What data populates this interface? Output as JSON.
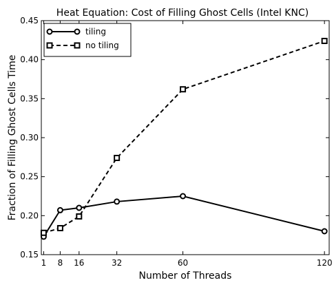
{
  "chart_data": {
    "type": "line",
    "title": "Heat Equation: Cost of Filling Ghost Cells (Intel KNC)",
    "xlabel": "Number of Threads",
    "ylabel": "Fraction of Filling Ghost Cells Time",
    "x": [
      1,
      8,
      16,
      32,
      60,
      120
    ],
    "x_ticks": [
      "1",
      "8",
      "16",
      "32",
      "60",
      "120"
    ],
    "xlim": [
      0,
      122
    ],
    "ylim": [
      0.15,
      0.45
    ],
    "y_ticks": [
      "0.15",
      "0.20",
      "0.25",
      "0.30",
      "0.35",
      "0.40",
      "0.45"
    ],
    "y_tick_values": [
      0.15,
      0.2,
      0.25,
      0.3,
      0.35,
      0.4,
      0.45
    ],
    "grid": false,
    "legend_position": "top-left",
    "series": [
      {
        "name": "tiling",
        "marker": "circle",
        "line_style": "solid",
        "color": "#000000",
        "values": [
          0.173,
          0.207,
          0.21,
          0.218,
          0.225,
          0.18
        ]
      },
      {
        "name": "no tiling",
        "marker": "square",
        "line_style": "dashed",
        "color": "#000000",
        "values": [
          0.178,
          0.184,
          0.199,
          0.274,
          0.362,
          0.424
        ]
      }
    ]
  }
}
